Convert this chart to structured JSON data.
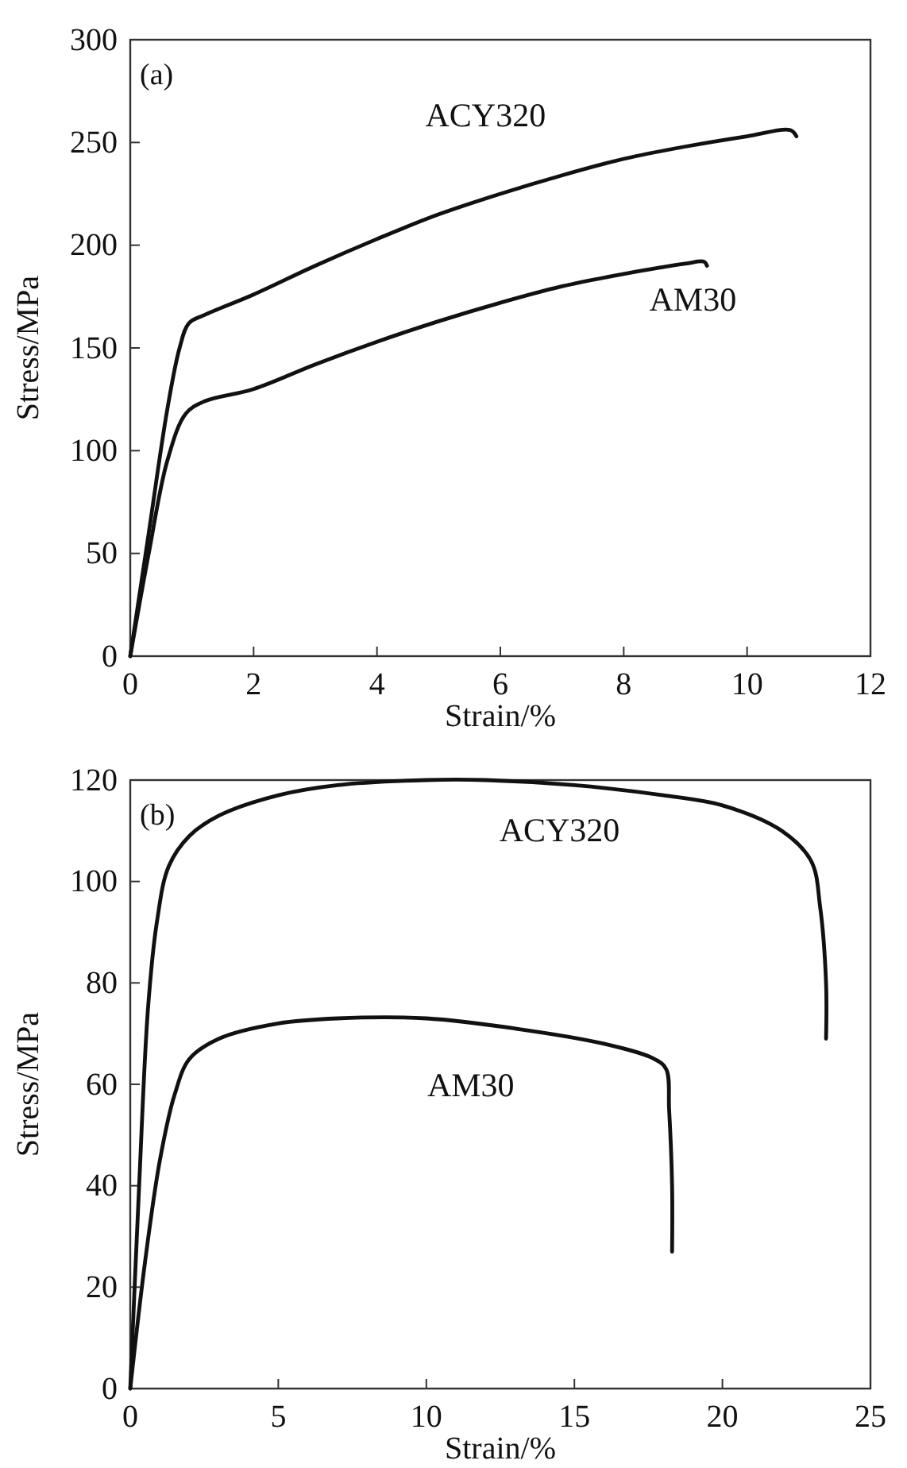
{
  "chart_data": [
    {
      "type": "line",
      "xlabel": "Strain/%",
      "ylabel": "Stress/MPa",
      "annotations": [
        "(a)"
      ],
      "xlim": [
        0,
        12
      ],
      "xticks": [
        0,
        2,
        4,
        6,
        8,
        10,
        12
      ],
      "ylim": [
        0,
        300
      ],
      "yticks": [
        0,
        50,
        100,
        150,
        200,
        250,
        300
      ],
      "grid": false,
      "legend": false,
      "series": [
        {
          "name": "ACY320",
          "color": "#111111",
          "x": [
            0,
            0.3,
            0.6,
            0.8,
            0.95,
            1.2,
            2,
            3,
            4,
            5,
            6,
            7,
            8,
            9,
            10,
            10.7,
            10.8
          ],
          "values": [
            0,
            60,
            120,
            150,
            162,
            166,
            176,
            190,
            203,
            215,
            225,
            234,
            242,
            248,
            253,
            256,
            253
          ]
        },
        {
          "name": "AM30",
          "color": "#111111",
          "x": [
            0,
            0.3,
            0.6,
            0.9,
            1.2,
            2,
            3,
            4,
            5,
            6,
            7,
            8,
            9,
            9.3,
            9.35
          ],
          "values": [
            0,
            50,
            95,
            118,
            124,
            130,
            142,
            153,
            163,
            172,
            180,
            186,
            191,
            192,
            190
          ]
        }
      ]
    },
    {
      "type": "line",
      "xlabel": "Strain/%",
      "ylabel": "Stress/MPa",
      "annotations": [
        "(b)"
      ],
      "xlim": [
        0,
        25
      ],
      "xticks": [
        0,
        5,
        10,
        15,
        20,
        25
      ],
      "ylim": [
        0,
        120
      ],
      "yticks": [
        0,
        20,
        40,
        60,
        80,
        100,
        120
      ],
      "grid": false,
      "legend": false,
      "series": [
        {
          "name": "ACY320",
          "color": "#111111",
          "x": [
            0,
            0.3,
            0.6,
            0.9,
            1.3,
            2,
            3,
            5,
            7,
            10,
            12,
            15,
            18,
            20,
            22,
            23,
            23.3,
            23.5,
            23.5
          ],
          "values": [
            0,
            40,
            75,
            92,
            103,
            109,
            113,
            117,
            119,
            120,
            120,
            119,
            117,
            115,
            110,
            104,
            95,
            80,
            69
          ]
        },
        {
          "name": "AM30",
          "color": "#111111",
          "x": [
            0,
            0.5,
            1,
            1.5,
            2,
            3,
            5,
            7,
            10,
            13,
            16,
            17.7,
            18.1,
            18.2,
            18.3,
            18.3
          ],
          "values": [
            0,
            25,
            45,
            58,
            65,
            69,
            72,
            73,
            73,
            71,
            68,
            65,
            63,
            55,
            40,
            27
          ]
        }
      ]
    }
  ]
}
